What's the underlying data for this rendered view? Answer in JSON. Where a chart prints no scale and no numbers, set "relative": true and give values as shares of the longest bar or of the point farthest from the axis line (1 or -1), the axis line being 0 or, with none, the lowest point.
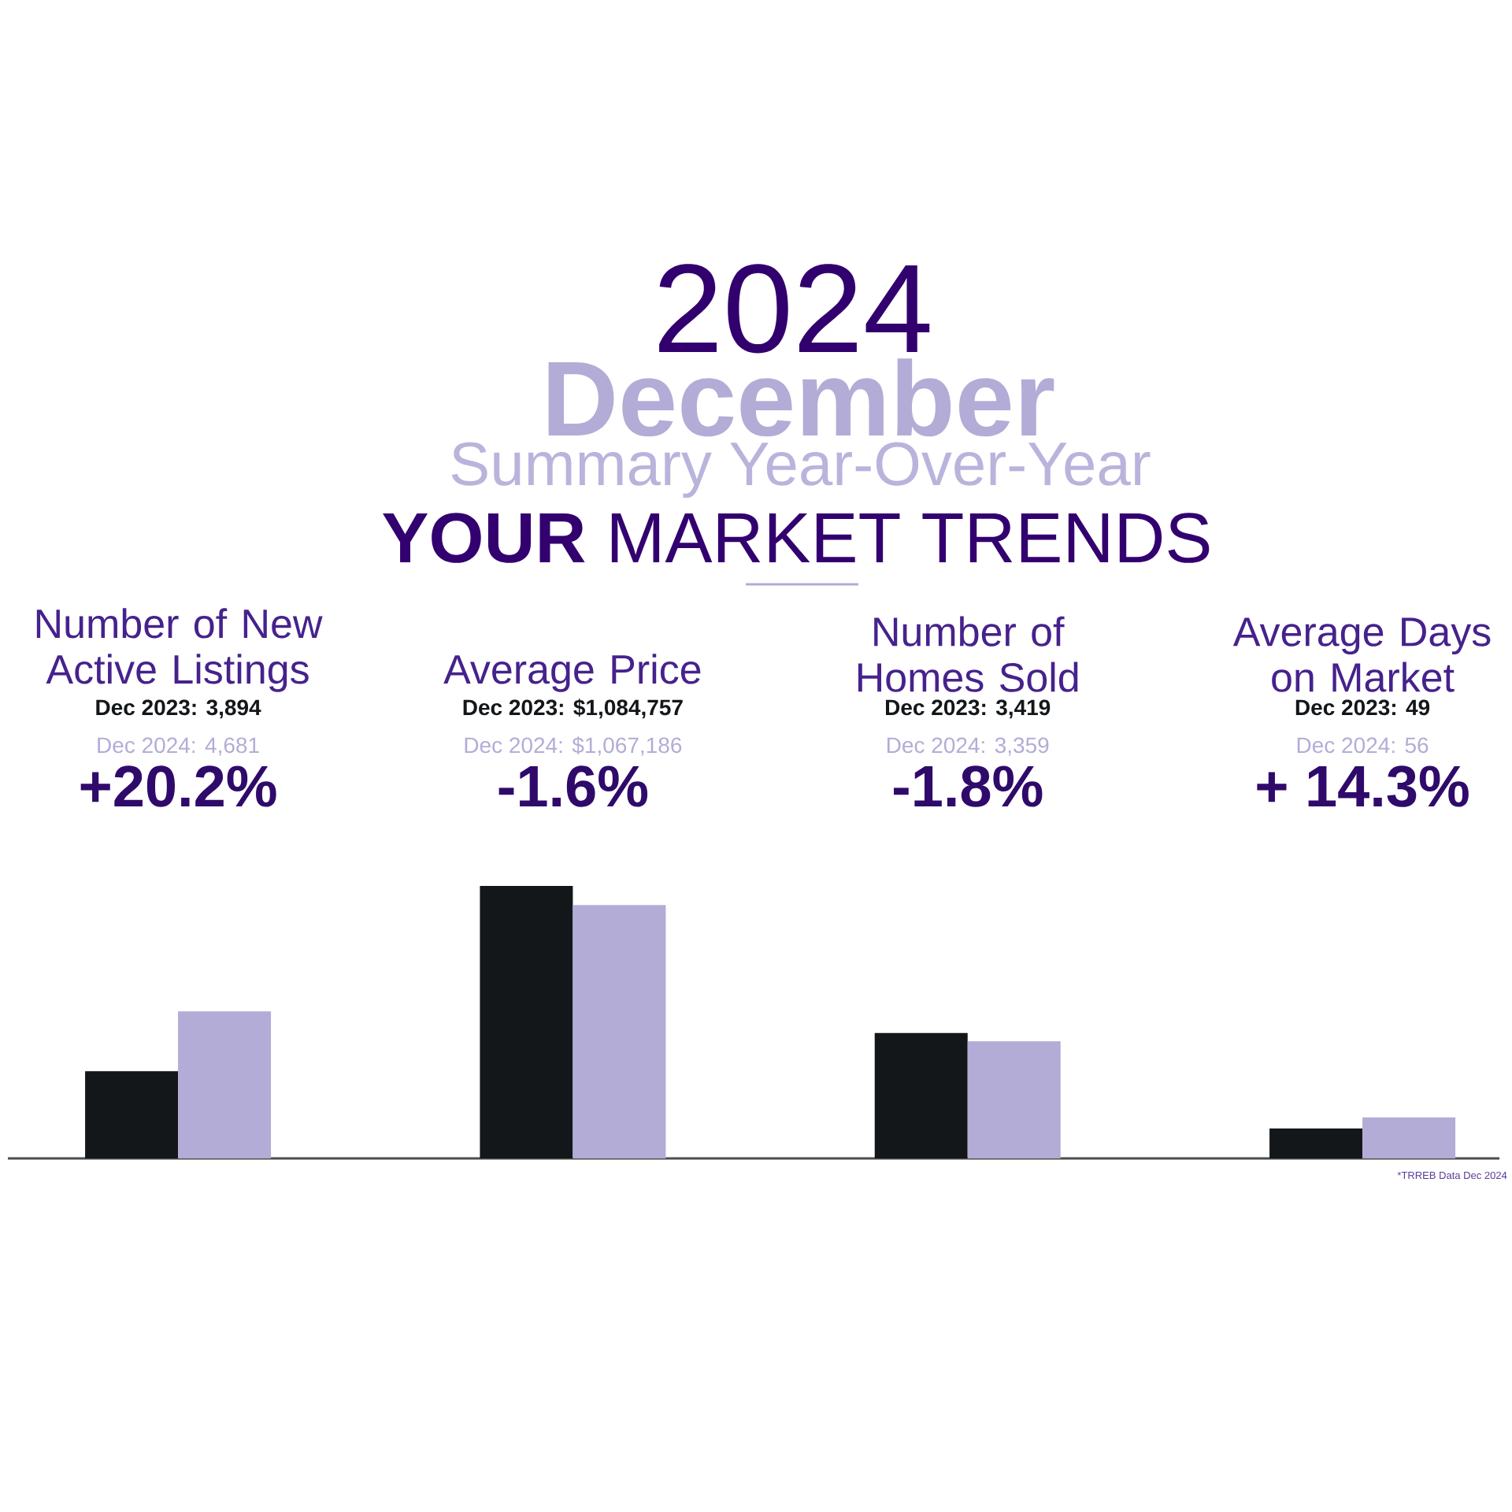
{
  "chart_data": {
    "type": "bar",
    "title": "**YOUR** MARKET TRENDS",
    "subtitle": "Summary Year-Over-Year",
    "categories": [
      "Number of New Active Listings",
      "Average Price",
      "Number of Homes Sold",
      "Average Days on Market"
    ],
    "series": [
      {
        "color": "#13171a",
        "values": [
          0.32,
          1,
          0.46,
          0.11
        ]
      },
      {
        "color": "#b2acd6",
        "values": [
          0.54,
          0.93,
          0.43,
          0.15
        ]
      }
    ],
    "relative": true,
    "annotations": [
      "2024",
      "December",
      "Dec 2023: 3,894",
      "Dec 2024: 4,681",
      "+20.2%",
      "Dec 2023: $1,084,757",
      "Dec 2024: $1,067,186",
      "-1.6%",
      "Dec 2023: 3,419",
      "Dec 2024: 3,359",
      "-1.8%",
      "Dec 2023: 49",
      "Dec 2024: 56",
      "+ 14.3%",
      "*TRREB Data Dec 2024"
    ]
  }
}
